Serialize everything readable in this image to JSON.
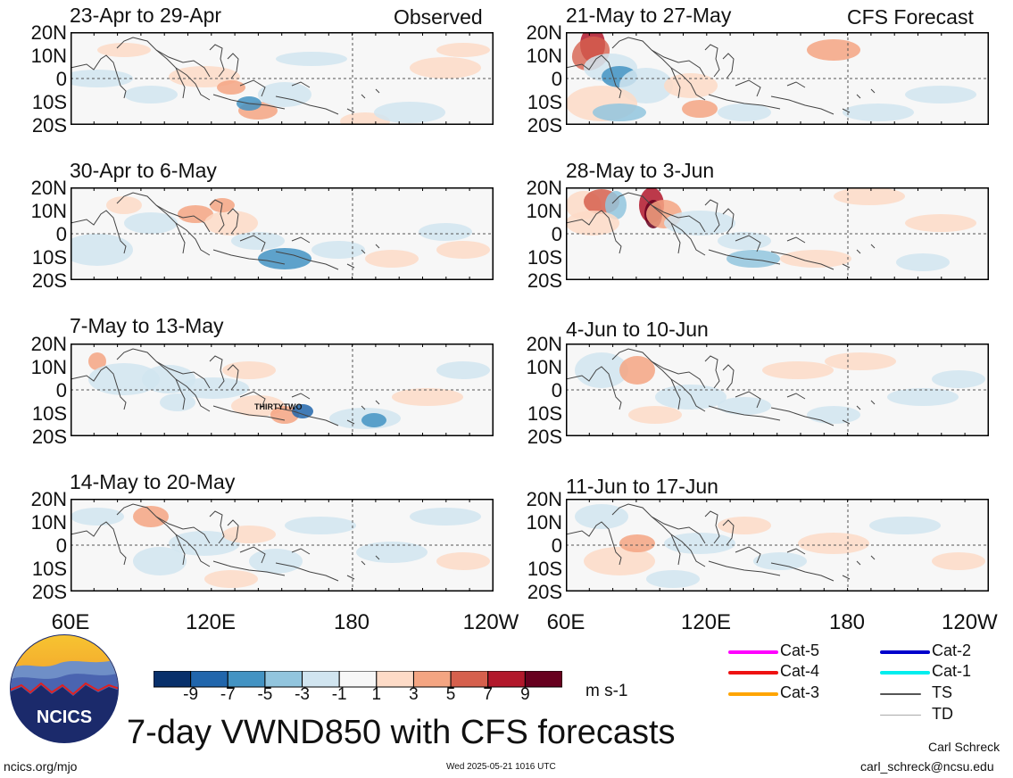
{
  "headers": {
    "observed": "Observed",
    "forecast": "CFS Forecast"
  },
  "panels": [
    {
      "label": "23-Apr to 29-Apr",
      "group": "observed"
    },
    {
      "label": "30-Apr to 6-May",
      "group": "observed"
    },
    {
      "label": "7-May to 13-May",
      "group": "observed",
      "storm_label": "THIRTYTWO"
    },
    {
      "label": "14-May to 20-May",
      "group": "observed"
    },
    {
      "label": "21-May to 27-May",
      "group": "forecast"
    },
    {
      "label": "28-May to 3-Jun",
      "group": "forecast"
    },
    {
      "label": "4-Jun to 10-Jun",
      "group": "forecast"
    },
    {
      "label": "11-Jun to 17-Jun",
      "group": "forecast"
    }
  ],
  "axes": {
    "lat_labels": [
      "20N",
      "10N",
      "0",
      "10S",
      "20S"
    ],
    "lon_labels": [
      "60E",
      "120E",
      "180",
      "120W"
    ]
  },
  "colorbar": {
    "ticks": [
      "-9",
      "-7",
      "-5",
      "-3",
      "-1",
      "1",
      "3",
      "5",
      "7",
      "9"
    ],
    "colors": [
      "#08306b",
      "#2166ac",
      "#4393c3",
      "#92c5de",
      "#d1e5f0",
      "#f7f7f7",
      "#fddbc7",
      "#f4a582",
      "#d6604d",
      "#b2182b",
      "#67001f"
    ],
    "units": "m s-1"
  },
  "legend": [
    {
      "label": "Cat-5",
      "color": "#ff00ff"
    },
    {
      "label": "Cat-4",
      "color": "#ee1111"
    },
    {
      "label": "Cat-3",
      "color": "#ffa500"
    },
    {
      "label": "Cat-2",
      "color": "#0000cc"
    },
    {
      "label": "Cat-1",
      "color": "#00eeee"
    },
    {
      "label": "TS",
      "color": "#555555"
    },
    {
      "label": "TD",
      "color": "#aaaaaa"
    }
  ],
  "logo": {
    "text": "NCICS"
  },
  "title": "7-day VWND850 with CFS forecasts",
  "footer": {
    "url": "ncics.org/mjo",
    "timestamp": "Wed 2025-05-21 1016 UTC",
    "author": "Carl Schreck",
    "email": "carl_schreck@ncsu.edu"
  }
}
